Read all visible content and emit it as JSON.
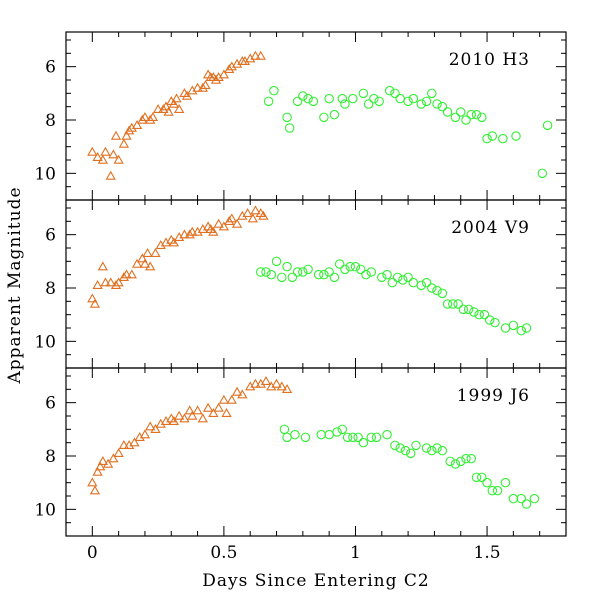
{
  "chart_data": {
    "type": "scatter",
    "xlabel": "Days Since Entering C2",
    "ylabel": "Apparent Magnitude",
    "xlim": [
      -0.1,
      1.8
    ],
    "ylim_inverted": [
      11,
      4.7
    ],
    "x_ticks": [
      0,
      0.5,
      1,
      1.5
    ],
    "x_tick_labels": [
      "0",
      "0.5",
      "1",
      "1.5"
    ],
    "y_ticks": [
      6,
      8,
      10
    ],
    "y_tick_labels": [
      "6",
      "8",
      "10"
    ],
    "colors": {
      "triangles": "#e07020",
      "circles": "#33ee33"
    },
    "panels": [
      {
        "title": "2010 H3",
        "triangles": [
          [
            0,
            9.2
          ],
          [
            0.02,
            9.4
          ],
          [
            0.04,
            9.5
          ],
          [
            0.05,
            9.2
          ],
          [
            0.07,
            10.1
          ],
          [
            0.08,
            9.3
          ],
          [
            0.09,
            8.6
          ],
          [
            0.1,
            9.5
          ],
          [
            0.12,
            8.9
          ],
          [
            0.13,
            8.6
          ],
          [
            0.14,
            8.4
          ],
          [
            0.15,
            8.3
          ],
          [
            0.17,
            8.2
          ],
          [
            0.19,
            8.0
          ],
          [
            0.2,
            7.9
          ],
          [
            0.22,
            8.0
          ],
          [
            0.23,
            7.9
          ],
          [
            0.25,
            7.6
          ],
          [
            0.27,
            7.6
          ],
          [
            0.28,
            7.5
          ],
          [
            0.29,
            7.7
          ],
          [
            0.3,
            7.3
          ],
          [
            0.31,
            7.4
          ],
          [
            0.32,
            7.2
          ],
          [
            0.33,
            7.6
          ],
          [
            0.35,
            7.0
          ],
          [
            0.36,
            7.1
          ],
          [
            0.38,
            6.9
          ],
          [
            0.4,
            6.8
          ],
          [
            0.42,
            6.8
          ],
          [
            0.43,
            6.7
          ],
          [
            0.44,
            6.3
          ],
          [
            0.45,
            6.4
          ],
          [
            0.46,
            6.4
          ],
          [
            0.47,
            6.5
          ],
          [
            0.48,
            6.4
          ],
          [
            0.5,
            6.3
          ],
          [
            0.52,
            6.1
          ],
          [
            0.53,
            6.0
          ],
          [
            0.55,
            5.9
          ],
          [
            0.57,
            5.8
          ],
          [
            0.58,
            5.8
          ],
          [
            0.6,
            5.7
          ],
          [
            0.62,
            5.6
          ],
          [
            0.64,
            5.6
          ]
        ],
        "circles": [
          [
            0.67,
            7.3
          ],
          [
            0.69,
            6.9
          ],
          [
            0.74,
            7.9
          ],
          [
            0.75,
            8.3
          ],
          [
            0.78,
            7.3
          ],
          [
            0.8,
            7.1
          ],
          [
            0.82,
            7.2
          ],
          [
            0.84,
            7.3
          ],
          [
            0.88,
            7.9
          ],
          [
            0.9,
            7.2
          ],
          [
            0.92,
            7.8
          ],
          [
            0.95,
            7.2
          ],
          [
            0.96,
            7.4
          ],
          [
            0.99,
            7.2
          ],
          [
            1.03,
            7.0
          ],
          [
            1.05,
            7.4
          ],
          [
            1.07,
            7.2
          ],
          [
            1.09,
            7.3
          ],
          [
            1.13,
            6.9
          ],
          [
            1.15,
            7.0
          ],
          [
            1.17,
            7.2
          ],
          [
            1.2,
            7.3
          ],
          [
            1.22,
            7.2
          ],
          [
            1.25,
            7.4
          ],
          [
            1.27,
            7.3
          ],
          [
            1.29,
            7.0
          ],
          [
            1.31,
            7.4
          ],
          [
            1.33,
            7.5
          ],
          [
            1.35,
            7.7
          ],
          [
            1.38,
            7.9
          ],
          [
            1.4,
            7.7
          ],
          [
            1.42,
            8.0
          ],
          [
            1.44,
            7.8
          ],
          [
            1.46,
            7.8
          ],
          [
            1.48,
            7.9
          ],
          [
            1.5,
            8.7
          ],
          [
            1.52,
            8.6
          ],
          [
            1.56,
            8.7
          ],
          [
            1.61,
            8.6
          ],
          [
            1.71,
            10.0
          ],
          [
            1.73,
            8.2
          ]
        ]
      },
      {
        "title": "2004 V9",
        "triangles": [
          [
            0,
            8.4
          ],
          [
            0.01,
            8.6
          ],
          [
            0.02,
            7.9
          ],
          [
            0.04,
            7.2
          ],
          [
            0.05,
            7.8
          ],
          [
            0.07,
            7.8
          ],
          [
            0.09,
            7.9
          ],
          [
            0.1,
            7.8
          ],
          [
            0.12,
            7.6
          ],
          [
            0.13,
            7.5
          ],
          [
            0.15,
            7.5
          ],
          [
            0.17,
            7.1
          ],
          [
            0.19,
            6.9
          ],
          [
            0.2,
            7.1
          ],
          [
            0.21,
            6.7
          ],
          [
            0.22,
            7.2
          ],
          [
            0.24,
            6.7
          ],
          [
            0.26,
            6.4
          ],
          [
            0.28,
            6.3
          ],
          [
            0.3,
            6.2
          ],
          [
            0.31,
            6.3
          ],
          [
            0.33,
            6.1
          ],
          [
            0.35,
            6.0
          ],
          [
            0.37,
            6.0
          ],
          [
            0.38,
            5.9
          ],
          [
            0.4,
            5.9
          ],
          [
            0.42,
            5.8
          ],
          [
            0.44,
            5.7
          ],
          [
            0.45,
            5.8
          ],
          [
            0.46,
            5.9
          ],
          [
            0.48,
            5.6
          ],
          [
            0.5,
            5.7
          ],
          [
            0.52,
            5.5
          ],
          [
            0.53,
            5.4
          ],
          [
            0.55,
            5.6
          ],
          [
            0.57,
            5.3
          ],
          [
            0.59,
            5.2
          ],
          [
            0.61,
            5.4
          ],
          [
            0.62,
            5.1
          ],
          [
            0.64,
            5.2
          ],
          [
            0.65,
            5.3
          ]
        ],
        "circles": [
          [
            0.64,
            7.4
          ],
          [
            0.66,
            7.4
          ],
          [
            0.68,
            7.5
          ],
          [
            0.7,
            7.0
          ],
          [
            0.72,
            7.6
          ],
          [
            0.74,
            7.2
          ],
          [
            0.76,
            7.6
          ],
          [
            0.78,
            7.4
          ],
          [
            0.8,
            7.4
          ],
          [
            0.82,
            7.3
          ],
          [
            0.86,
            7.5
          ],
          [
            0.88,
            7.5
          ],
          [
            0.9,
            7.4
          ],
          [
            0.92,
            7.6
          ],
          [
            0.94,
            7.1
          ],
          [
            0.96,
            7.3
          ],
          [
            0.98,
            7.2
          ],
          [
            1.0,
            7.2
          ],
          [
            1.02,
            7.3
          ],
          [
            1.04,
            7.5
          ],
          [
            1.06,
            7.4
          ],
          [
            1.1,
            7.6
          ],
          [
            1.12,
            7.5
          ],
          [
            1.14,
            7.8
          ],
          [
            1.16,
            7.6
          ],
          [
            1.18,
            7.7
          ],
          [
            1.2,
            7.6
          ],
          [
            1.22,
            7.8
          ],
          [
            1.25,
            7.9
          ],
          [
            1.27,
            7.8
          ],
          [
            1.29,
            8.0
          ],
          [
            1.31,
            8.1
          ],
          [
            1.33,
            8.2
          ],
          [
            1.35,
            8.6
          ],
          [
            1.37,
            8.6
          ],
          [
            1.39,
            8.6
          ],
          [
            1.41,
            8.8
          ],
          [
            1.43,
            8.8
          ],
          [
            1.45,
            8.9
          ],
          [
            1.47,
            9.0
          ],
          [
            1.49,
            9.0
          ],
          [
            1.51,
            9.2
          ],
          [
            1.53,
            9.3
          ],
          [
            1.57,
            9.5
          ],
          [
            1.6,
            9.4
          ],
          [
            1.63,
            9.6
          ],
          [
            1.65,
            9.5
          ]
        ]
      },
      {
        "title": "1999 J6",
        "triangles": [
          [
            0,
            9.0
          ],
          [
            0.01,
            9.3
          ],
          [
            0.02,
            8.6
          ],
          [
            0.03,
            8.4
          ],
          [
            0.04,
            8.2
          ],
          [
            0.06,
            8.3
          ],
          [
            0.08,
            8.1
          ],
          [
            0.1,
            7.9
          ],
          [
            0.12,
            7.6
          ],
          [
            0.14,
            7.6
          ],
          [
            0.16,
            7.5
          ],
          [
            0.18,
            7.3
          ],
          [
            0.2,
            7.2
          ],
          [
            0.22,
            6.9
          ],
          [
            0.24,
            7.0
          ],
          [
            0.26,
            6.8
          ],
          [
            0.28,
            6.7
          ],
          [
            0.3,
            6.6
          ],
          [
            0.31,
            6.7
          ],
          [
            0.33,
            6.5
          ],
          [
            0.35,
            6.6
          ],
          [
            0.37,
            6.3
          ],
          [
            0.38,
            6.5
          ],
          [
            0.4,
            6.3
          ],
          [
            0.42,
            6.6
          ],
          [
            0.44,
            6.2
          ],
          [
            0.46,
            6.4
          ],
          [
            0.48,
            6.2
          ],
          [
            0.5,
            5.9
          ],
          [
            0.51,
            6.4
          ],
          [
            0.53,
            5.9
          ],
          [
            0.55,
            5.6
          ],
          [
            0.57,
            5.7
          ],
          [
            0.6,
            5.4
          ],
          [
            0.62,
            5.3
          ],
          [
            0.64,
            5.3
          ],
          [
            0.66,
            5.2
          ],
          [
            0.68,
            5.4
          ],
          [
            0.7,
            5.3
          ],
          [
            0.72,
            5.4
          ],
          [
            0.74,
            5.5
          ]
        ],
        "circles": [
          [
            0.73,
            7.0
          ],
          [
            0.74,
            7.3
          ],
          [
            0.77,
            7.2
          ],
          [
            0.81,
            7.3
          ],
          [
            0.87,
            7.2
          ],
          [
            0.9,
            7.2
          ],
          [
            0.93,
            7.1
          ],
          [
            0.95,
            7.0
          ],
          [
            0.97,
            7.3
          ],
          [
            0.99,
            7.3
          ],
          [
            1.01,
            7.3
          ],
          [
            1.03,
            7.5
          ],
          [
            1.06,
            7.3
          ],
          [
            1.08,
            7.3
          ],
          [
            1.12,
            7.2
          ],
          [
            1.15,
            7.6
          ],
          [
            1.17,
            7.7
          ],
          [
            1.19,
            7.8
          ],
          [
            1.21,
            7.9
          ],
          [
            1.23,
            7.6
          ],
          [
            1.27,
            7.7
          ],
          [
            1.29,
            7.8
          ],
          [
            1.31,
            7.7
          ],
          [
            1.33,
            7.8
          ],
          [
            1.36,
            8.2
          ],
          [
            1.38,
            8.3
          ],
          [
            1.4,
            8.2
          ],
          [
            1.42,
            8.1
          ],
          [
            1.44,
            8.1
          ],
          [
            1.46,
            8.8
          ],
          [
            1.48,
            8.8
          ],
          [
            1.5,
            9.0
          ],
          [
            1.52,
            9.3
          ],
          [
            1.54,
            9.3
          ],
          [
            1.57,
            9.0
          ],
          [
            1.6,
            9.6
          ],
          [
            1.63,
            9.6
          ],
          [
            1.65,
            9.8
          ],
          [
            1.68,
            9.6
          ]
        ]
      }
    ]
  }
}
